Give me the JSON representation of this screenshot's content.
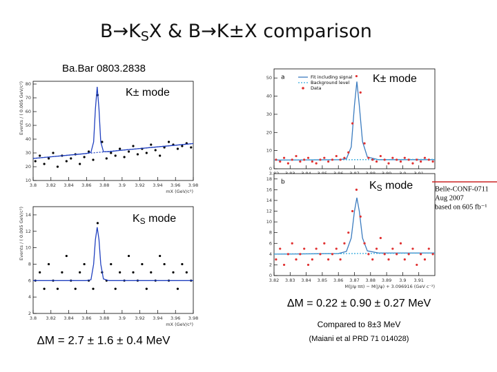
{
  "title_parts": [
    "B→K",
    "S",
    "X & B→K±X comparison"
  ],
  "babar_ref": "Ba.Bar 0803.2838",
  "labels": {
    "kpm_left": "K± mode",
    "ks_left": [
      "K",
      "S",
      " mode"
    ],
    "kpm_right": "K± mode",
    "ks_right": [
      "K",
      "S",
      " mode"
    ]
  },
  "belle_note": [
    "Belle-CONF-0711",
    "Aug 2007",
    "based on 605 fb⁻¹"
  ],
  "belle_result": "ΔM = 0.22 ± 0.90 ± 0.27 MeV",
  "compared": "Compared to  8±3 MeV",
  "reference": "(Maiani et al PRD 71 014028)",
  "babar_result": "ΔM = 2.7 ± 1.6 ± 0.4 MeV",
  "chart_data": [
    {
      "type": "scatter",
      "y_label": "Events / ( 0.005 GeV/c²)",
      "x_label": "mX (GeV/c²)",
      "xlim": [
        3.8,
        3.98
      ],
      "xticks": [
        3.8,
        3.82,
        3.84,
        3.86,
        3.88,
        3.9,
        3.92,
        3.94,
        3.96,
        3.98
      ],
      "ylim": [
        10,
        82
      ],
      "yticks": [
        10,
        20,
        30,
        40,
        50,
        60,
        70,
        80
      ],
      "series": [
        {
          "mode": "points",
          "color": "#000000",
          "x": [
            3.8025,
            3.8075,
            3.8125,
            3.8175,
            3.8225,
            3.8275,
            3.8325,
            3.8375,
            3.8425,
            3.8475,
            3.8525,
            3.8575,
            3.8625,
            3.8675,
            3.8725,
            3.8775,
            3.8825,
            3.8875,
            3.8925,
            3.8975,
            3.9025,
            3.9075,
            3.9125,
            3.9175,
            3.9225,
            3.9275,
            3.9325,
            3.9375,
            3.9425,
            3.9475,
            3.9525,
            3.9575,
            3.9625,
            3.9675,
            3.9725,
            3.9775
          ],
          "values": [
            24,
            28,
            22,
            26,
            30,
            20,
            28,
            24,
            26,
            29,
            22,
            27,
            31,
            25,
            72,
            38,
            26,
            30,
            28,
            33,
            27,
            31,
            35,
            29,
            33,
            30,
            36,
            32,
            28,
            34,
            38,
            36,
            33,
            35,
            37,
            34
          ]
        },
        {
          "mode": "line",
          "color": "#1f3fbf",
          "x": [
            3.8,
            3.82,
            3.84,
            3.86,
            3.865,
            3.868,
            3.87,
            3.872,
            3.874,
            3.876,
            3.879,
            3.885,
            3.9,
            3.92,
            3.94,
            3.96,
            3.98
          ],
          "values": [
            26,
            27.2,
            28.4,
            29.6,
            30.5,
            38,
            62,
            78,
            62,
            38,
            31,
            30.9,
            32,
            33.2,
            34.4,
            35.6,
            36.8
          ]
        },
        {
          "mode": "dotted",
          "color": "#1f3fbf",
          "x": [
            3.8,
            3.98
          ],
          "values": [
            26,
            36.8
          ]
        }
      ]
    },
    {
      "type": "scatter",
      "y_label": "Events / ( 0.005 GeV/c²)",
      "x_label": "mX (GeV/c²)",
      "xlim": [
        3.8,
        3.98
      ],
      "xticks": [
        3.8,
        3.82,
        3.84,
        3.86,
        3.88,
        3.9,
        3.92,
        3.94,
        3.96,
        3.98
      ],
      "ylim": [
        2,
        15
      ],
      "yticks": [
        2,
        4,
        6,
        8,
        10,
        12,
        14
      ],
      "series": [
        {
          "mode": "points",
          "color": "#000000",
          "x": [
            3.8025,
            3.8075,
            3.8125,
            3.8175,
            3.8225,
            3.8275,
            3.8325,
            3.8375,
            3.8425,
            3.8475,
            3.8525,
            3.8575,
            3.8625,
            3.8675,
            3.8725,
            3.8775,
            3.8825,
            3.8875,
            3.8925,
            3.8975,
            3.9025,
            3.9075,
            3.9125,
            3.9175,
            3.9225,
            3.9275,
            3.9325,
            3.9375,
            3.9425,
            3.9475,
            3.9525,
            3.9575,
            3.9625,
            3.9675,
            3.9725,
            3.9775
          ],
          "values": [
            6,
            7,
            5,
            8,
            6,
            5,
            7,
            9,
            6,
            5,
            7,
            8,
            6,
            5,
            13,
            7,
            6,
            8,
            5,
            7,
            6,
            9,
            7,
            6,
            8,
            5,
            7,
            6,
            9,
            8,
            6,
            7,
            5,
            8,
            7,
            6
          ]
        },
        {
          "mode": "line",
          "color": "#1f3fbf",
          "x": [
            3.8,
            3.82,
            3.84,
            3.86,
            3.865,
            3.868,
            3.87,
            3.872,
            3.874,
            3.876,
            3.879,
            3.885,
            3.9,
            3.92,
            3.94,
            3.96,
            3.98
          ],
          "values": [
            6,
            6,
            6,
            6,
            6.1,
            8,
            11,
            12.5,
            11,
            8,
            6.2,
            6,
            6,
            6,
            6,
            6,
            6
          ]
        }
      ]
    },
    {
      "type": "scatter",
      "annotation": "a",
      "xlim": [
        3.82,
        3.92
      ],
      "xticks": [
        3.82,
        3.83,
        3.84,
        3.85,
        3.86,
        3.87,
        3.88,
        3.89,
        3.9,
        3.91
      ],
      "ylim": [
        0,
        55
      ],
      "yticks": [
        0,
        10,
        20,
        30,
        40,
        50
      ],
      "series": [
        {
          "name": "Fit including signal",
          "mode": "line",
          "color": "#3a7bbf",
          "x": [
            3.82,
            3.86,
            3.865,
            3.868,
            3.87,
            3.8715,
            3.873,
            3.875,
            3.878,
            3.885,
            3.92
          ],
          "values": [
            4.8,
            5,
            5.5,
            12,
            35,
            48,
            35,
            15,
            6.5,
            5,
            5
          ]
        },
        {
          "name": "Background level",
          "mode": "dotted",
          "color": "#33aadd",
          "x": [
            3.82,
            3.92
          ],
          "values": [
            4.8,
            5.2
          ]
        },
        {
          "name": "Data",
          "mode": "points",
          "color": "#e03030",
          "x": [
            3.82125,
            3.82375,
            3.82625,
            3.82875,
            3.83125,
            3.83375,
            3.83625,
            3.83875,
            3.84125,
            3.84375,
            3.84625,
            3.84875,
            3.85125,
            3.85375,
            3.85625,
            3.85875,
            3.86125,
            3.86375,
            3.86625,
            3.86875,
            3.87125,
            3.87375,
            3.87625,
            3.87875,
            3.88125,
            3.88375,
            3.88625,
            3.88875,
            3.89125,
            3.89375,
            3.89625,
            3.89875,
            3.90125,
            3.90375,
            3.90625,
            3.90875,
            3.91125,
            3.91375,
            3.91625,
            3.91875
          ],
          "values": [
            5,
            4,
            6,
            3,
            5,
            7,
            4,
            5,
            6,
            4,
            3,
            5,
            6,
            4,
            5,
            7,
            5,
            6,
            9,
            25,
            51,
            42,
            14,
            6,
            5,
            4,
            7,
            5,
            3,
            6,
            5,
            4,
            6,
            5,
            3,
            5,
            4,
            6,
            5,
            4
          ]
        }
      ]
    },
    {
      "type": "scatter",
      "annotation": "b",
      "x_label": "M(J/ψ ππ) − M(J/ψ) + 3.096916 (GeV c⁻²)",
      "xlim": [
        3.82,
        3.92
      ],
      "xticks": [
        3.82,
        3.83,
        3.84,
        3.85,
        3.86,
        3.87,
        3.88,
        3.89,
        3.9,
        3.91
      ],
      "ylim": [
        0,
        19
      ],
      "yticks": [
        0,
        2,
        4,
        6,
        8,
        10,
        12,
        14,
        16,
        18
      ],
      "series": [
        {
          "mode": "line",
          "color": "#3a7bbf",
          "x": [
            3.82,
            3.86,
            3.865,
            3.868,
            3.87,
            3.8715,
            3.873,
            3.875,
            3.878,
            3.885,
            3.92
          ],
          "values": [
            4,
            4.1,
            4.5,
            7,
            12,
            14.5,
            12,
            7,
            4.6,
            4.2,
            4.2
          ]
        },
        {
          "mode": "dotted",
          "color": "#33aadd",
          "x": [
            3.82,
            3.92
          ],
          "values": [
            4,
            4.2
          ]
        },
        {
          "mode": "points",
          "color": "#e03030",
          "x": [
            3.82125,
            3.82375,
            3.82625,
            3.82875,
            3.83125,
            3.83375,
            3.83625,
            3.83875,
            3.84125,
            3.84375,
            3.84625,
            3.84875,
            3.85125,
            3.85375,
            3.85625,
            3.85875,
            3.86125,
            3.86375,
            3.86625,
            3.86875,
            3.87125,
            3.87375,
            3.87625,
            3.87875,
            3.88125,
            3.88375,
            3.88625,
            3.88875,
            3.89125,
            3.89375,
            3.89625,
            3.89875,
            3.90125,
            3.90375,
            3.90625,
            3.90875,
            3.91125,
            3.91375,
            3.91625,
            3.91875
          ],
          "values": [
            3,
            5,
            2,
            4,
            6,
            3,
            4,
            5,
            2,
            3,
            5,
            4,
            6,
            3,
            4,
            5,
            3,
            6,
            8,
            12,
            16,
            11,
            6,
            4,
            3,
            5,
            7,
            4,
            3,
            5,
            4,
            6,
            3,
            4,
            5,
            2,
            4,
            3,
            5,
            4
          ]
        }
      ]
    }
  ]
}
